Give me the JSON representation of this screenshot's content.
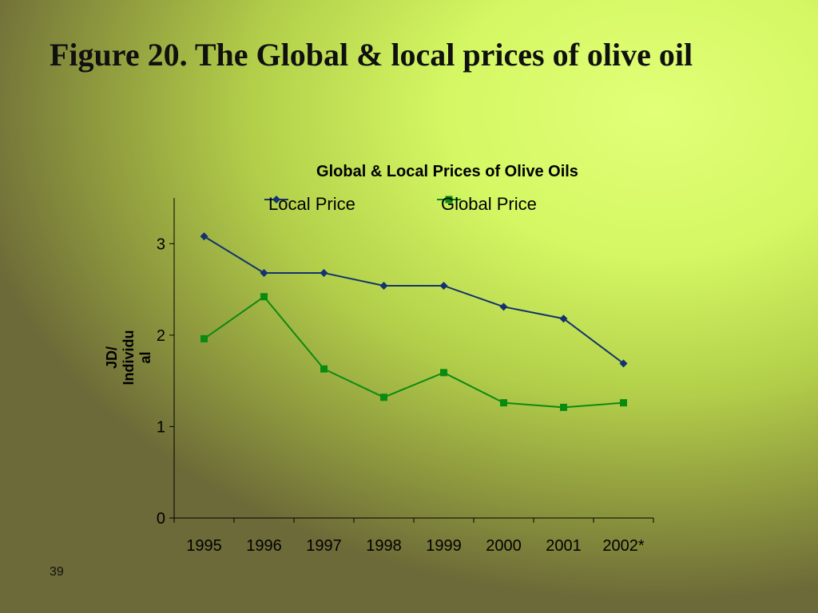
{
  "slide": {
    "title": "Figure 20. The Global & local prices of olive oil",
    "page_number": "39"
  },
  "colors": {
    "local": "#12336e",
    "global": "#0b8a12",
    "axis": "#000000"
  },
  "chart_data": {
    "type": "line",
    "title": "Global & Local Prices of Olive Oils",
    "categories": [
      "1995",
      "1996",
      "1997",
      "1998",
      "1999",
      "2000",
      "2001",
      "2002*"
    ],
    "ylabel": "JD/ Individual",
    "ylabel_lines": [
      "JD/",
      "Individu",
      "al"
    ],
    "xlabel": "",
    "ylim": [
      0,
      3.5
    ],
    "yticks": [
      "0",
      "1",
      "2",
      "3"
    ],
    "grid": false,
    "legend_position": "top",
    "series": [
      {
        "name": "Local Price",
        "marker": "diamond",
        "values": [
          3.08,
          2.68,
          2.68,
          2.54,
          2.54,
          2.31,
          2.18,
          1.69
        ]
      },
      {
        "name": "Global Price",
        "marker": "square",
        "values": [
          1.96,
          2.42,
          1.63,
          1.32,
          1.59,
          1.26,
          1.21,
          1.26
        ]
      }
    ]
  }
}
